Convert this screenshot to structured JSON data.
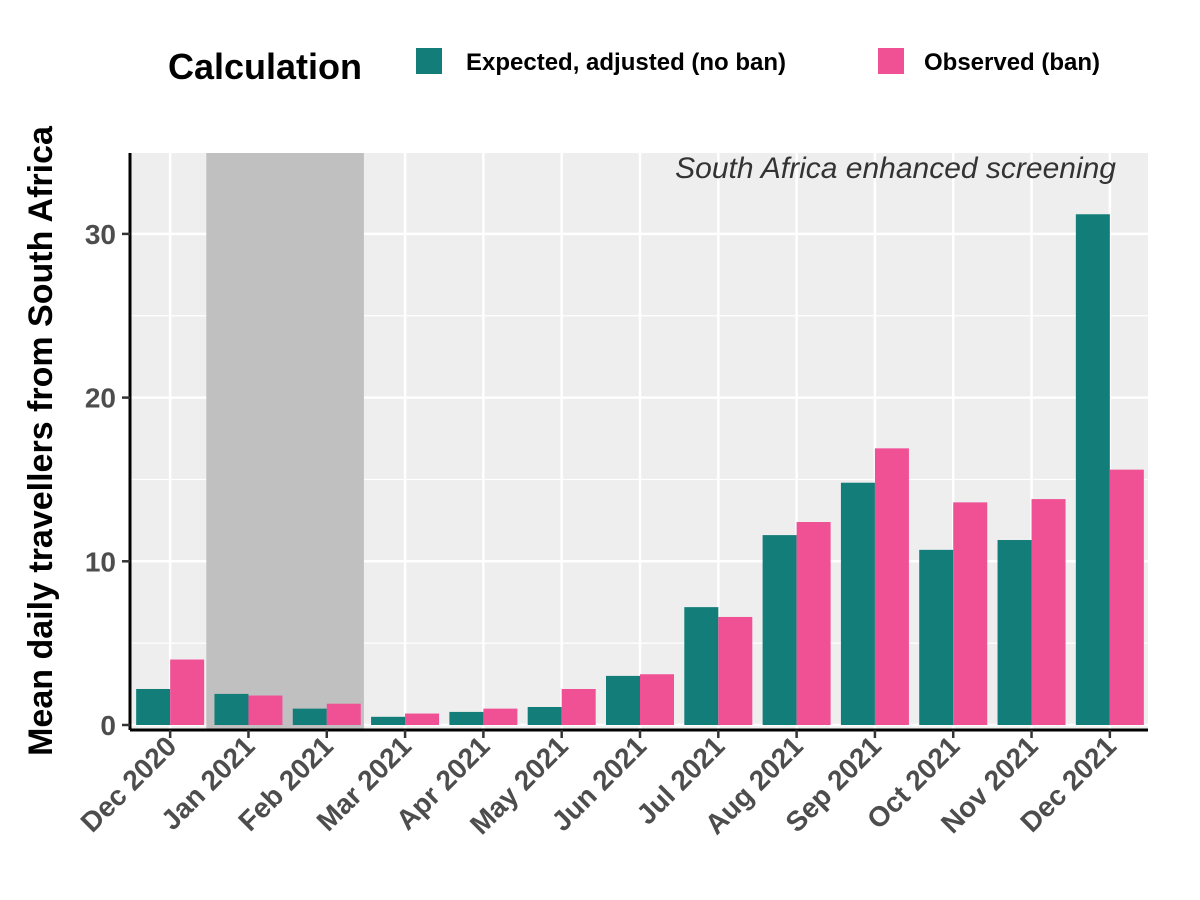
{
  "chart_data": {
    "type": "bar",
    "categories": [
      "Dec 2020",
      "Jan 2021",
      "Feb 2021",
      "Mar 2021",
      "Apr 2021",
      "May 2021",
      "Jun 2021",
      "Jul 2021",
      "Aug 2021",
      "Sep 2021",
      "Oct 2021",
      "Nov 2021",
      "Dec 2021"
    ],
    "series": [
      {
        "name": "Expected, adjusted (no ban)",
        "color": "#127D79",
        "values": [
          2.2,
          1.9,
          1.0,
          0.5,
          0.8,
          1.1,
          3.0,
          7.2,
          11.6,
          14.8,
          10.7,
          11.3,
          31.2
        ]
      },
      {
        "name": "Observed (ban)",
        "color": "#F05195",
        "values": [
          4.0,
          1.8,
          1.3,
          0.7,
          1.0,
          2.2,
          3.1,
          6.6,
          12.4,
          16.9,
          13.6,
          13.8,
          15.6
        ]
      }
    ],
    "title": "",
    "xlabel": "",
    "ylabel": "Mean daily travellers from South Africa",
    "ylim": [
      0,
      35
    ],
    "yticks": [
      0,
      10,
      20,
      30
    ],
    "legend_title": "Calculation",
    "legend_position": "top",
    "annotation": "South Africa enhanced screening",
    "shaded_period": {
      "from": "Jan 2021",
      "to": "Feb 2021",
      "color": "#C0C0C0"
    },
    "grid": true,
    "panel_background": "#EEEEEE"
  }
}
